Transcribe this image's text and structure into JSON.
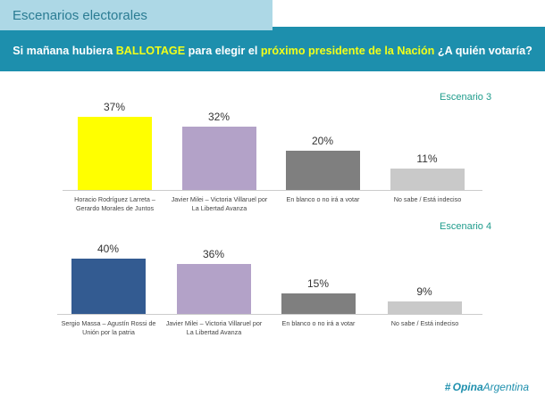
{
  "header": {
    "section_title": "Escenarios electorales",
    "question_part1": "Si mañana hubiera ",
    "question_highlight1": "BALLOTAGE",
    "question_part2": " para elegir el ",
    "question_highlight2": "próximo presidente de la Nación",
    "question_part3": " ¿A quién votaría?"
  },
  "logo": {
    "icon": "#",
    "bold": "Opina",
    "rest": "Argentina"
  },
  "chart_data": [
    {
      "type": "bar",
      "title": "Escenario 3",
      "categories": [
        "Horacio Rodríguez Larreta – Gerardo Morales de Juntos",
        "Javier Milei – Victoria Villaruel por La Libertad Avanza",
        "En blanco o no irá a votar",
        "No sabe / Está indeciso"
      ],
      "values": [
        37,
        32,
        20,
        11
      ],
      "value_labels": [
        "37%",
        "32%",
        "20%",
        "11%"
      ],
      "colors": [
        "#ffff00",
        "#b3a2c8",
        "#7f7f7f",
        "#c9c9c9"
      ],
      "ylim": [
        0,
        40
      ]
    },
    {
      "type": "bar",
      "title": "Escenario 4",
      "categories": [
        "Sergio Massa – Agustín Rossi de Unión por la patria",
        "Javier Milei – Victoria Villaruel por La Libertad Avanza",
        "En blanco o no irá a votar",
        "No sabe / Está indeciso"
      ],
      "values": [
        40,
        36,
        15,
        9
      ],
      "value_labels": [
        "40%",
        "36%",
        "15%",
        "9%"
      ],
      "colors": [
        "#335b91",
        "#b3a2c8",
        "#7f7f7f",
        "#c9c9c9"
      ],
      "ylim": [
        0,
        40
      ]
    }
  ]
}
